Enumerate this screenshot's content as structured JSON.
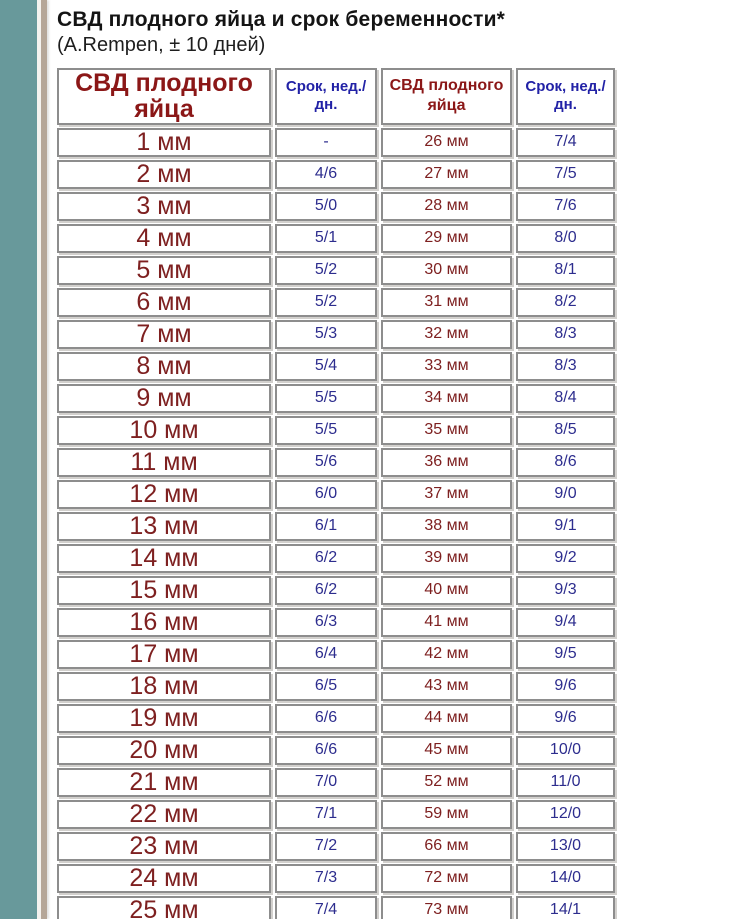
{
  "page": {
    "title": "СВД плодного яйца и срок беременности*",
    "subtitle": "(A.Rempen, ± 10 дней)"
  },
  "colors": {
    "teal_strip": "#68999b",
    "tan_strip": "#b5a698",
    "cell_border": "#8d8d8d",
    "dark_red_text": "#7e2020",
    "navy_text": "#2d2d8e",
    "title_text": "#141414"
  },
  "table": {
    "headers": [
      "СВД плодного яйца",
      "Срок, нед./ дн.",
      "СВД плодного яйца",
      "Срок, нед./ дн."
    ],
    "rows": [
      [
        "1 мм",
        "-",
        "26 мм",
        "7/4"
      ],
      [
        "2 мм",
        "4/6",
        "27 мм",
        "7/5"
      ],
      [
        "3 мм",
        "5/0",
        "28 мм",
        "7/6"
      ],
      [
        "4 мм",
        "5/1",
        "29 мм",
        "8/0"
      ],
      [
        "5 мм",
        "5/2",
        "30 мм",
        "8/1"
      ],
      [
        "6 мм",
        "5/2",
        "31 мм",
        "8/2"
      ],
      [
        "7 мм",
        "5/3",
        "32 мм",
        "8/3"
      ],
      [
        "8 мм",
        "5/4",
        "33 мм",
        "8/3"
      ],
      [
        "9 мм",
        "5/5",
        "34 мм",
        "8/4"
      ],
      [
        "10 мм",
        "5/5",
        "35 мм",
        "8/5"
      ],
      [
        "11 мм",
        "5/6",
        "36 мм",
        "8/6"
      ],
      [
        "12 мм",
        "6/0",
        "37 мм",
        "9/0"
      ],
      [
        "13 мм",
        "6/1",
        "38 мм",
        "9/1"
      ],
      [
        "14 мм",
        "6/2",
        "39 мм",
        "9/2"
      ],
      [
        "15 мм",
        "6/2",
        "40 мм",
        "9/3"
      ],
      [
        "16 мм",
        "6/3",
        "41 мм",
        "9/4"
      ],
      [
        "17 мм",
        "6/4",
        "42 мм",
        "9/5"
      ],
      [
        "18 мм",
        "6/5",
        "43 мм",
        "9/6"
      ],
      [
        "19 мм",
        "6/6",
        "44 мм",
        "9/6"
      ],
      [
        "20 мм",
        "6/6",
        "45 мм",
        "10/0"
      ],
      [
        "21 мм",
        "7/0",
        "52 мм",
        "11/0"
      ],
      [
        "22 мм",
        "7/1",
        "59 мм",
        "12/0"
      ],
      [
        "23 мм",
        "7/2",
        "66 мм",
        "13/0"
      ],
      [
        "24 мм",
        "7/3",
        "72 мм",
        "14/0"
      ],
      [
        "25 мм",
        "7/4",
        "73 мм",
        "14/1"
      ]
    ]
  }
}
